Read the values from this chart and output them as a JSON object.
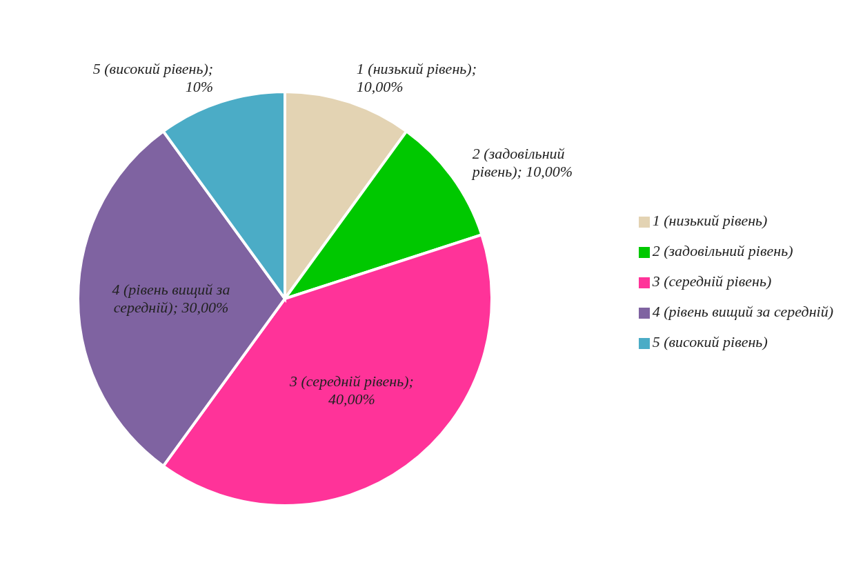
{
  "chart_data": {
    "type": "pie",
    "categories": [
      "1 (низький рівень)",
      "2 (задовільний рівень)",
      "3 (середній рівень)",
      "4 (рівень вищий за середній)",
      "5 (високий рівень)"
    ],
    "values": [
      10,
      10,
      40,
      30,
      10
    ],
    "colors": [
      "#e3d3b3",
      "#00c800",
      "#ff3399",
      "#7f63a1",
      "#4bacc6"
    ],
    "value_labels": [
      "1 (низький рівень); 10,00%",
      "2 (задовільний рівень); 10,00%",
      "3 (середній рівень); 40,00%",
      "4 (рівень вищий за середній); 30,00%",
      "5 (високий рівень); 10%"
    ],
    "legend": "right"
  }
}
